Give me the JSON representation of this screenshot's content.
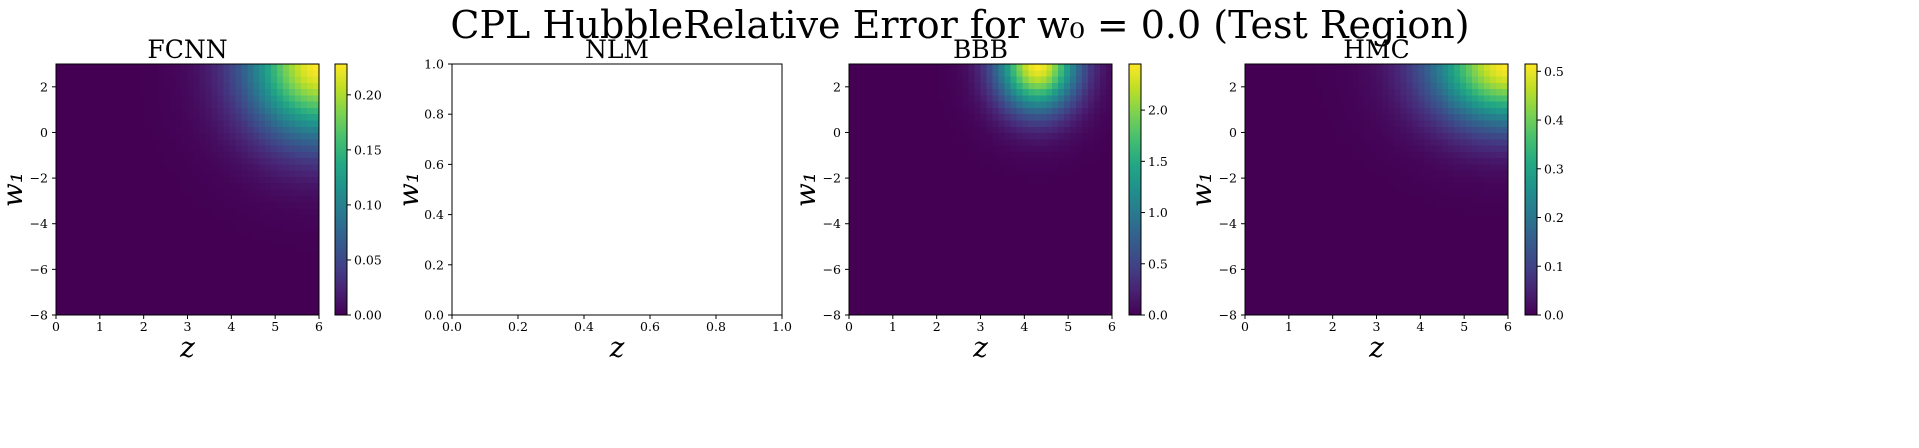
{
  "figure": {
    "title": "CPL HubbleRelative Error for w₀ = 0.0 (Test Region)"
  },
  "colors": {
    "viridis_low": "#440154",
    "viridis_high": "#fde725",
    "axes_frame": "#000000"
  },
  "chart_data": [
    {
      "type": "heatmap",
      "title": "FCNN",
      "xlabel": "z",
      "ylabel": "w₁",
      "xlim": [
        0,
        6
      ],
      "ylim": [
        -8,
        3
      ],
      "xticks": [
        "0",
        "1",
        "2",
        "3",
        "4",
        "5",
        "6"
      ],
      "yticks": [
        "−8",
        "−6",
        "−4",
        "−2",
        "0",
        "2"
      ],
      "colorbar": {
        "range": [
          0,
          0.228
        ],
        "ticks": [
          "0.00",
          "0.05",
          "0.10",
          "0.15",
          "0.20"
        ],
        "tick_values": [
          0,
          0.05,
          0.1,
          0.15,
          0.2
        ]
      },
      "field": {
        "max_value": 0.228,
        "peak_z": 6.0,
        "peak_w1": 3.0,
        "spread_z": 1.6,
        "spread_w1": 3.2
      }
    },
    {
      "type": "heatmap",
      "title": "NLM",
      "xlabel": "z",
      "ylabel": "w₁",
      "xlim": [
        0,
        1
      ],
      "ylim": [
        0,
        1
      ],
      "xticks": [
        "0.0",
        "0.2",
        "0.4",
        "0.6",
        "0.8",
        "1.0"
      ],
      "yticks": [
        "0.0",
        "0.2",
        "0.4",
        "0.6",
        "0.8",
        "1.0"
      ],
      "empty": true
    },
    {
      "type": "heatmap",
      "title": "BBB",
      "xlabel": "z",
      "ylabel": "w₁",
      "xlim": [
        0,
        6
      ],
      "ylim": [
        -8,
        3
      ],
      "xticks": [
        "0",
        "1",
        "2",
        "3",
        "4",
        "5",
        "6"
      ],
      "yticks": [
        "−8",
        "−6",
        "−4",
        "−2",
        "0",
        "2"
      ],
      "colorbar": {
        "range": [
          0,
          2.45
        ],
        "ticks": [
          "0.0",
          "0.5",
          "1.0",
          "1.5",
          "2.0"
        ],
        "tick_values": [
          0,
          0.5,
          1.0,
          1.5,
          2.0
        ]
      },
      "field": {
        "max_value": 2.45,
        "peak_z": 4.3,
        "peak_w1": 3.0,
        "spread_z": 0.9,
        "spread_w1": 2.0
      }
    },
    {
      "type": "heatmap",
      "title": "HMC",
      "xlabel": "z",
      "ylabel": "w₁",
      "xlim": [
        0,
        6
      ],
      "ylim": [
        -8,
        3
      ],
      "xticks": [
        "0",
        "1",
        "2",
        "3",
        "4",
        "5",
        "6"
      ],
      "yticks": [
        "−8",
        "−6",
        "−4",
        "−2",
        "0",
        "2"
      ],
      "colorbar": {
        "range": [
          0,
          0.515
        ],
        "ticks": [
          "0.0",
          "0.1",
          "0.2",
          "0.3",
          "0.4",
          "0.5"
        ],
        "tick_values": [
          0,
          0.1,
          0.2,
          0.3,
          0.4,
          0.5
        ]
      },
      "field": {
        "max_value": 0.515,
        "peak_z": 6.0,
        "peak_w1": 3.0,
        "spread_z": 1.7,
        "spread_w1": 2.6
      }
    }
  ]
}
